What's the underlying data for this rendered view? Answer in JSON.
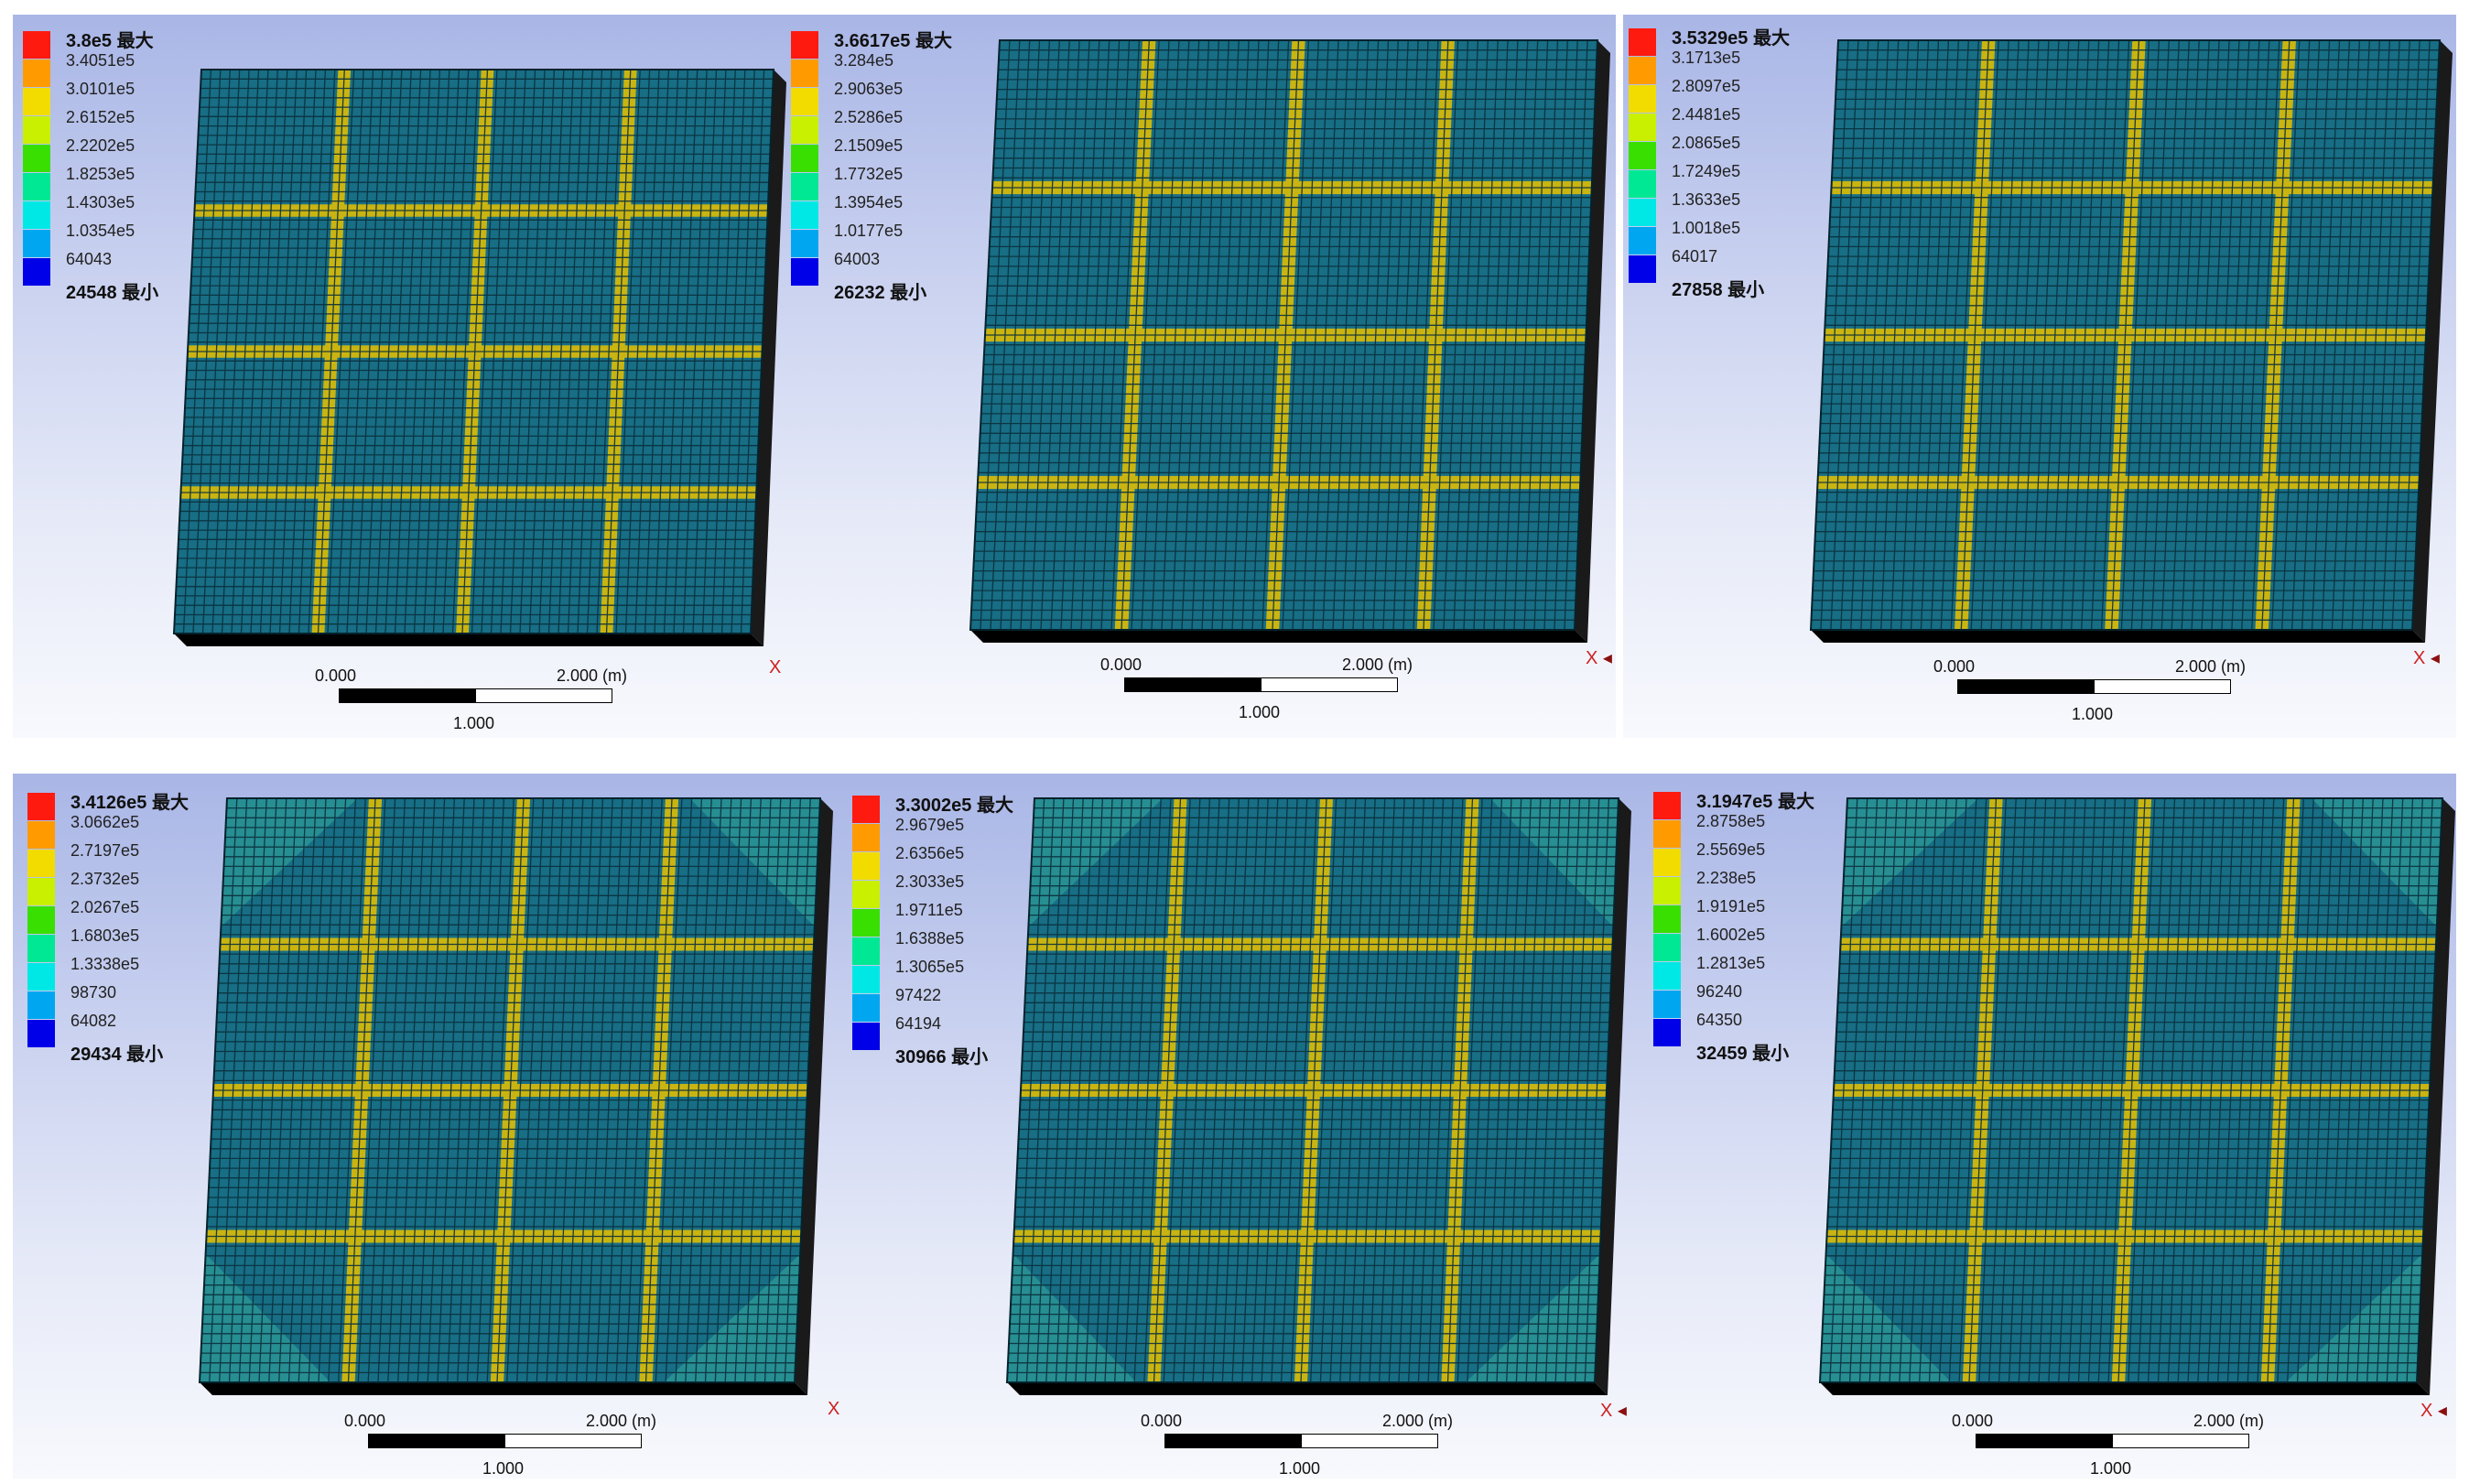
{
  "panels": [
    {
      "legend": {
        "max": "3.8e5 最大",
        "levels": [
          "3.4051e5",
          "3.0101e5",
          "2.6152e5",
          "2.2202e5",
          "1.8253e5",
          "1.4303e5",
          "1.0354e5",
          "64043"
        ],
        "min": "24548 最小"
      },
      "scale": {
        "left": "0.000",
        "right": "2.000 (m)",
        "mid": "1.000"
      },
      "axis": "X"
    },
    {
      "legend": {
        "max": "3.6617e5 最大",
        "levels": [
          "3.284e5",
          "2.9063e5",
          "2.5286e5",
          "2.1509e5",
          "1.7732e5",
          "1.3954e5",
          "1.0177e5",
          "64003"
        ],
        "min": "26232 最小"
      },
      "scale": {
        "left": "0.000",
        "right": "2.000 (m)",
        "mid": "1.000"
      },
      "axis": "X"
    },
    {
      "legend": {
        "max": "3.5329e5 最大",
        "levels": [
          "3.1713e5",
          "2.8097e5",
          "2.4481e5",
          "2.0865e5",
          "1.7249e5",
          "1.3633e5",
          "1.0018e5",
          "64017"
        ],
        "min": "27858 最小"
      },
      "scale": {
        "left": "0.000",
        "right": "2.000 (m)",
        "mid": "1.000"
      },
      "axis": "X"
    },
    {
      "legend": {
        "max": "3.4126e5 最大",
        "levels": [
          "3.0662e5",
          "2.7197e5",
          "2.3732e5",
          "2.0267e5",
          "1.6803e5",
          "1.3338e5",
          "98730",
          "64082"
        ],
        "min": "29434 最小"
      },
      "scale": {
        "left": "0.000",
        "right": "2.000 (m)",
        "mid": "1.000"
      },
      "axis": "X"
    },
    {
      "legend": {
        "max": "3.3002e5 最大",
        "levels": [
          "2.9679e5",
          "2.6356e5",
          "2.3033e5",
          "1.9711e5",
          "1.6388e5",
          "1.3065e5",
          "97422",
          "64194"
        ],
        "min": "30966 最小"
      },
      "scale": {
        "left": "0.000",
        "right": "2.000 (m)",
        "mid": "1.000"
      },
      "axis": "X"
    },
    {
      "legend": {
        "max": "3.1947e5 最大",
        "levels": [
          "2.8758e5",
          "2.5569e5",
          "2.238e5",
          "1.9191e5",
          "1.6002e5",
          "1.2813e5",
          "96240",
          "64350"
        ],
        "min": "32459 最小"
      },
      "scale": {
        "left": "0.000",
        "right": "2.000 (m)",
        "mid": "1.000"
      },
      "axis": "X"
    }
  ],
  "legend_colors": [
    "#ff1a10",
    "#ff9b00",
    "#f2dc00",
    "#c8f000",
    "#39df00",
    "#00e893",
    "#00e8e5",
    "#00a7f0",
    "#0000e8"
  ],
  "colors": {
    "plate": "#176e85",
    "cell_line": "#0a2f3c",
    "beam": "#c9b411",
    "corner_glow": "#2e9a97",
    "slab_edge": "#1a1a1a"
  }
}
